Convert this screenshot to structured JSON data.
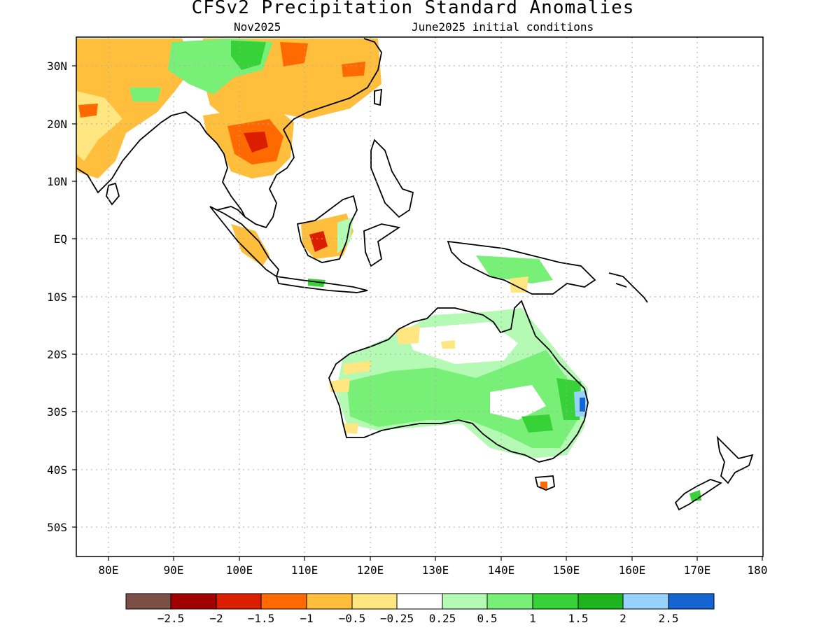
{
  "title": "CFSv2 Precipitation Standard Anomalies",
  "subtitle_left": "Nov2025",
  "subtitle_right": "June2025 initial conditions",
  "map": {
    "lon_range": [
      75,
      180
    ],
    "lat_range": [
      -55,
      35
    ],
    "lon_ticks": [
      "80E",
      "90E",
      "100E",
      "110E",
      "120E",
      "130E",
      "140E",
      "150E",
      "160E",
      "170E",
      "180"
    ],
    "lat_ticks": [
      "30N",
      "20N",
      "10N",
      "EQ",
      "10S",
      "20S",
      "30S",
      "40S",
      "50S"
    ],
    "grid": "dotted"
  },
  "colorbar": {
    "colors": [
      "#7a5046",
      "#a00000",
      "#dc1e00",
      "#ff6a00",
      "#ffbe3c",
      "#ffe680",
      "#ffffff",
      "#b4fab4",
      "#78f078",
      "#37d237",
      "#1eb41e",
      "#96d2fa",
      "#1464d2"
    ],
    "labels": [
      "−2.5",
      "−2",
      "−1.5",
      "−1",
      "−0.5",
      "−0.25",
      "0.25",
      "0.5",
      "1",
      "1.5",
      "2",
      "2.5"
    ]
  },
  "colors": {
    "coast": "#000000",
    "grid": "#aaaaaa"
  }
}
